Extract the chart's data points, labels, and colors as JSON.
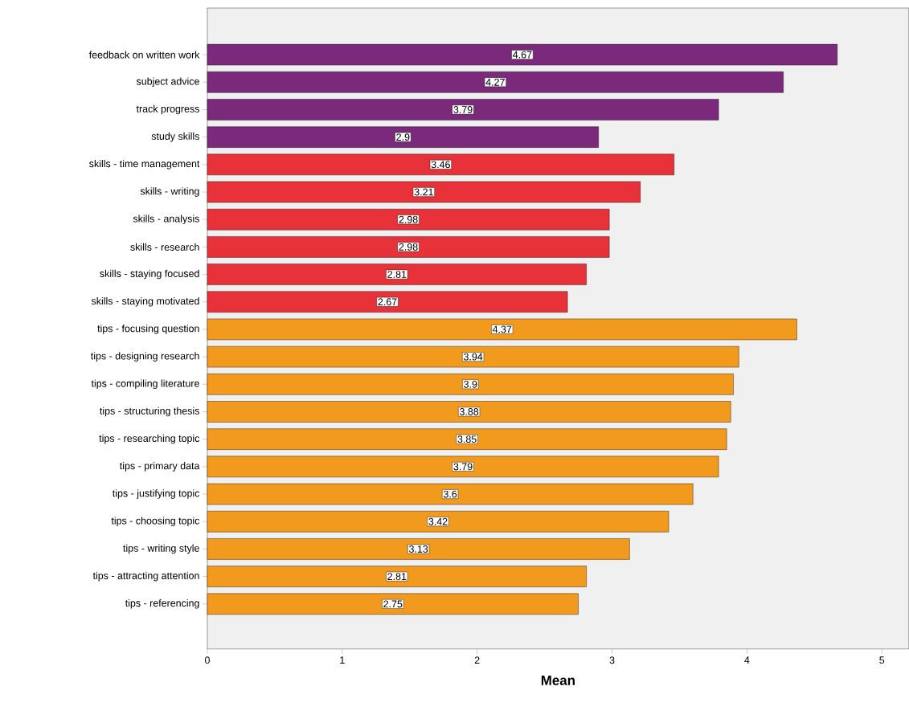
{
  "chart_data": {
    "type": "bar",
    "orientation": "horizontal",
    "xlabel": "Mean",
    "categories": [
      "feedback on written work",
      "subject advice",
      "track progress",
      "study skills",
      "skills - time management",
      "skills - writing",
      "skills - analysis",
      "skills - research",
      "skills - staying focused",
      "skills - staying motivated",
      "tips - focusing question",
      "tips - designing research",
      "tips - compiling literature",
      "tips - structuring thesis",
      "tips - researching topic",
      "tips - primary data",
      "tips - justifying topic",
      "tips - choosing topic",
      "tips - writing style",
      "tips - attracting attention",
      "tips - referencing"
    ],
    "values": [
      4.67,
      4.27,
      3.79,
      2.9,
      3.46,
      3.21,
      2.98,
      2.98,
      2.81,
      2.67,
      4.37,
      3.94,
      3.9,
      3.88,
      3.85,
      3.79,
      3.6,
      3.42,
      3.13,
      2.81,
      2.75
    ],
    "colors": [
      "#7b2a7b",
      "#7b2a7b",
      "#7b2a7b",
      "#7b2a7b",
      "#e8323a",
      "#e8323a",
      "#e8323a",
      "#e8323a",
      "#e8323a",
      "#e8323a",
      "#f29a1e",
      "#f29a1e",
      "#f29a1e",
      "#f29a1e",
      "#f29a1e",
      "#f29a1e",
      "#f29a1e",
      "#f29a1e",
      "#f29a1e",
      "#f29a1e",
      "#f29a1e"
    ],
    "xlim": [
      0,
      5.2
    ],
    "xticks": [
      0,
      1,
      2,
      3,
      4,
      5
    ],
    "data_labels": true
  }
}
